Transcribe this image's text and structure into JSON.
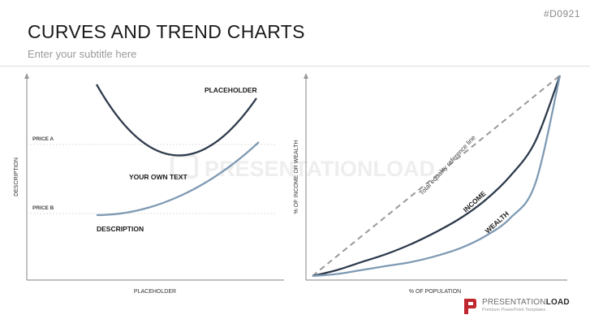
{
  "slide_id": "#D0921",
  "header": {
    "title": "CURVES AND TREND CHARTS",
    "subtitle": "Enter your subtitle here"
  },
  "watermark": "PRESENTATIONLOAD",
  "logo": {
    "name_light": "PRESENTATION",
    "name_bold": "LOAD",
    "tagline": "Premium PowerPoint Templates"
  },
  "colors": {
    "dark_curve": "#2e3b4c",
    "light_curve": "#7f9ab4",
    "axis": "#9a9a9a",
    "reference": "#999999",
    "logo_red": "#c0262d"
  },
  "chart_data": [
    {
      "type": "line",
      "xlabel": "PLACEHOLDER",
      "ylabel": "DESCRIPTION",
      "y_reference_labels": [
        "PRICE A",
        "PRICE B"
      ],
      "series": [
        {
          "label": "PLACEHOLDER",
          "shape": "U-shaped curve",
          "color": "#2e3b4c"
        },
        {
          "label": "DESCRIPTION",
          "shape": "rising curve",
          "color": "#7f9ab4"
        }
      ],
      "annotations": [
        "YOUR OWN TEXT"
      ]
    },
    {
      "type": "line",
      "xlabel": "% OF POPULATION",
      "ylabel": "% OF INCOME OR WEALTH",
      "x": [
        0,
        0.1,
        0.2,
        0.3,
        0.4,
        0.5,
        0.6,
        0.7,
        0.8,
        0.9,
        1.0
      ],
      "series": [
        {
          "label": "Total equality reference line",
          "style": "dashed",
          "color": "#999999",
          "values": [
            0,
            0.1,
            0.2,
            0.3,
            0.4,
            0.5,
            0.6,
            0.7,
            0.8,
            0.9,
            1.0
          ]
        },
        {
          "label": "INCOME",
          "color": "#2e3b4c",
          "values": [
            0,
            0.03,
            0.07,
            0.11,
            0.16,
            0.22,
            0.29,
            0.38,
            0.5,
            0.67,
            1.0
          ]
        },
        {
          "label": "WEALTH",
          "color": "#7f9ab4",
          "values": [
            0,
            0.01,
            0.03,
            0.05,
            0.07,
            0.1,
            0.14,
            0.2,
            0.29,
            0.46,
            1.0
          ]
        }
      ]
    }
  ]
}
